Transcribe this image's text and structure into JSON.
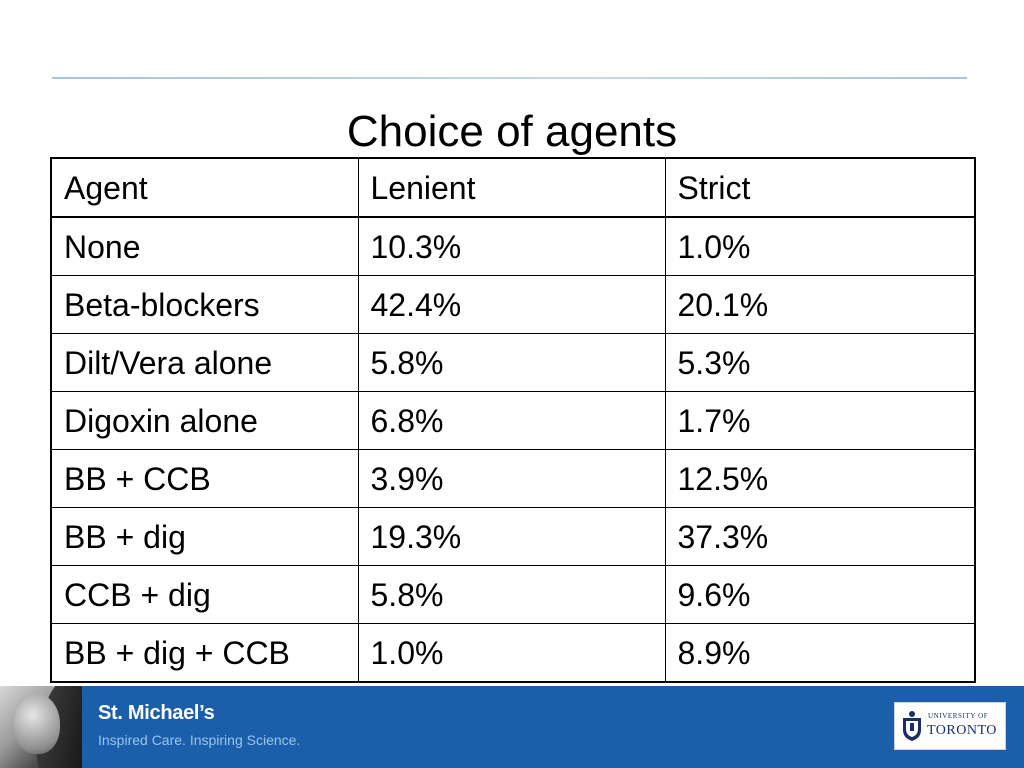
{
  "slide": {
    "title": "Choice of agents"
  },
  "table": {
    "headers": [
      "Agent",
      "Lenient",
      "Strict"
    ],
    "rows": [
      [
        "None",
        "10.3%",
        "1.0%"
      ],
      [
        "Beta-blockers",
        "42.4%",
        "20.1%"
      ],
      [
        "Dilt/Vera alone",
        "5.8%",
        "5.3%"
      ],
      [
        "Digoxin alone",
        "6.8%",
        "1.7%"
      ],
      [
        "BB + CCB",
        "3.9%",
        "12.5%"
      ],
      [
        "BB + dig",
        "19.3%",
        "37.3%"
      ],
      [
        "CCB + dig",
        "5.8%",
        "9.6%"
      ],
      [
        "BB + dig + CCB",
        "1.0%",
        "8.9%"
      ]
    ]
  },
  "footer": {
    "brand_name": "St. Michael’s",
    "brand_tagline": "Inspired Care. Inspiring Science.",
    "university_small": "UNIVERSITY OF",
    "university_big": "TORONTO",
    "colors": {
      "footer_bg": "#1b5fab",
      "tagline": "#9cc3ea",
      "uoft_navy": "#1a2f66"
    }
  }
}
